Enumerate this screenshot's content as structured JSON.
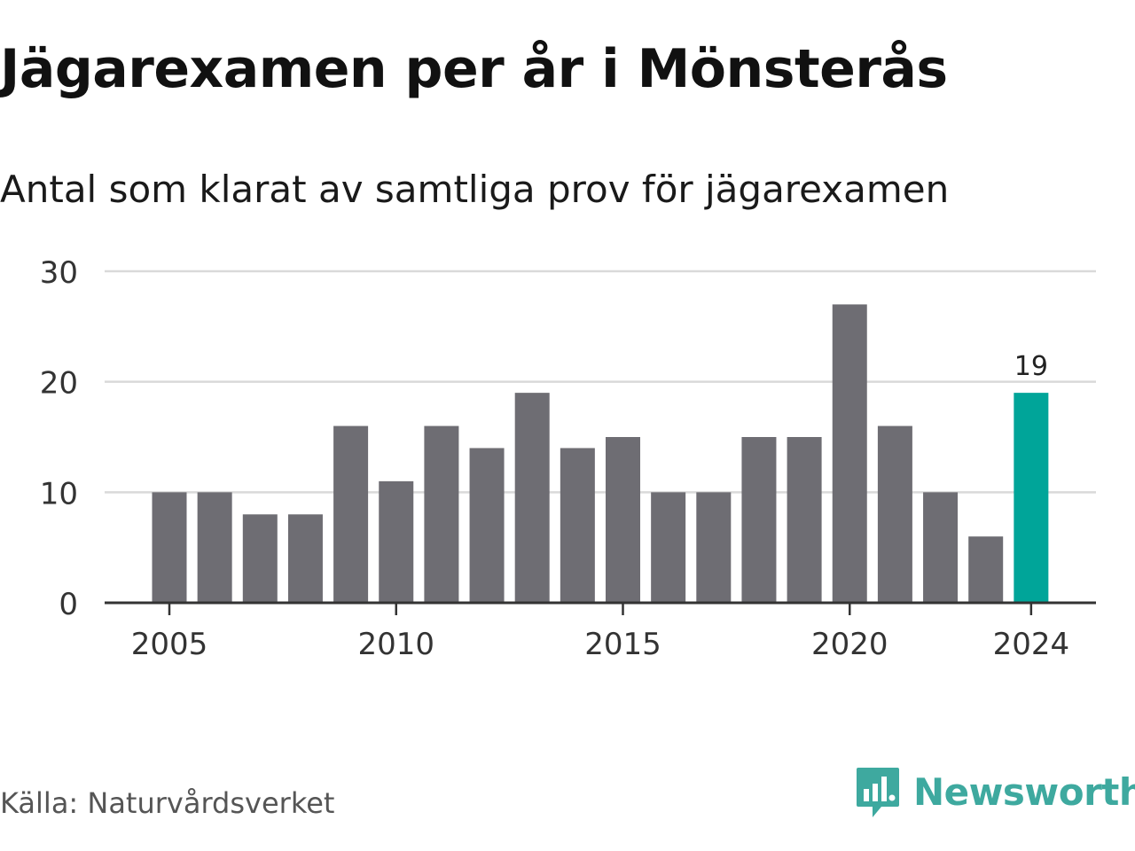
{
  "title": "Jägarexamen per år i Mönsterås",
  "subtitle": "Antal som klarat av samtliga prov för jägarexamen",
  "source": "Källa: Naturvårdsverket",
  "brand": {
    "name": "Newsworthy",
    "logo_icon": "newsworthy-chart-bubble-icon",
    "color": "#3ea99f"
  },
  "colors": {
    "bar": "#6e6d73",
    "highlight": "#00a599",
    "grid": "#d9d9d9",
    "axis": "#333333"
  },
  "chart_data": {
    "type": "bar",
    "x": [
      2005,
      2006,
      2007,
      2008,
      2009,
      2010,
      2011,
      2012,
      2013,
      2014,
      2015,
      2016,
      2017,
      2018,
      2019,
      2020,
      2021,
      2022,
      2023,
      2024
    ],
    "values": [
      10,
      10,
      8,
      8,
      16,
      11,
      16,
      14,
      19,
      14,
      15,
      10,
      10,
      15,
      15,
      27,
      16,
      10,
      6,
      19
    ],
    "ylim": [
      0,
      30
    ],
    "yticks": [
      0,
      10,
      20,
      30
    ],
    "xticks": [
      2005,
      2010,
      2015,
      2020,
      2024
    ],
    "highlight": {
      "x": 2024,
      "label": "19"
    },
    "grid": true,
    "xlabel": "",
    "ylabel": ""
  }
}
